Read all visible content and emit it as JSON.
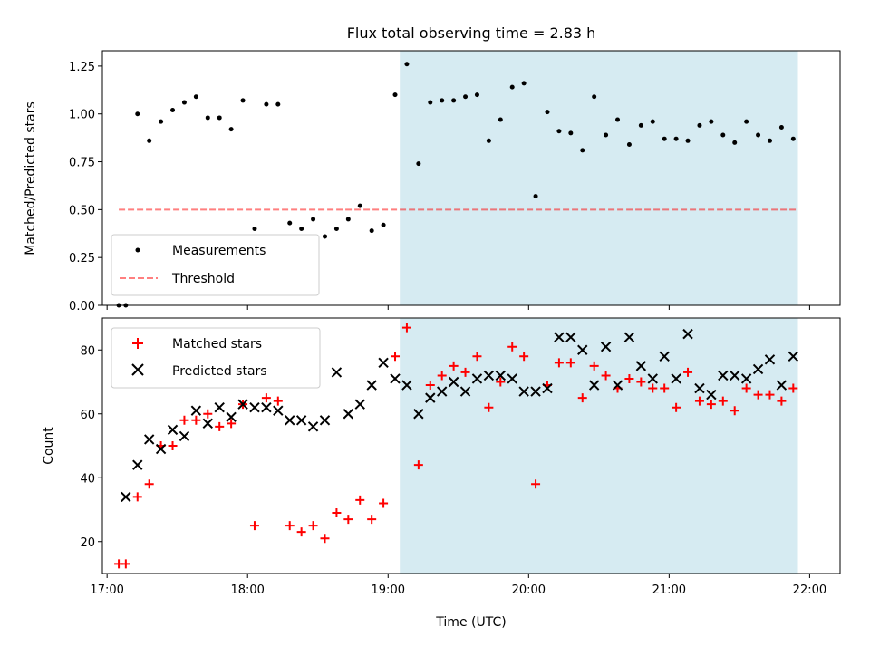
{
  "chart_data": {
    "type": "scatter",
    "title": "Flux total observing time = 2.83 h",
    "xlabel": "Time (UTC)",
    "x_ticks": [
      "17:00",
      "18:00",
      "19:00",
      "20:00",
      "21:00",
      "22:00"
    ],
    "x_range": [
      "16:58",
      "22:13"
    ],
    "shaded_interval": [
      "19:05",
      "21:55"
    ],
    "colors": {
      "shade": "#add8e6",
      "measurements": "#000000",
      "threshold": "#ff0000",
      "matched": "#ff0000",
      "predicted": "#000000"
    },
    "panels": [
      {
        "ylabel": "Matched/Predicted stars",
        "ylim": [
          0,
          1.33
        ],
        "y_ticks": [
          "0.00",
          "0.25",
          "0.50",
          "0.75",
          "1.00",
          "1.25"
        ],
        "legend_position": "lower-left",
        "threshold": {
          "name": "Threshold",
          "value": 0.5,
          "x_range": [
            "17:05",
            "21:55"
          ],
          "style": "dashed"
        },
        "series": [
          {
            "name": "Measurements",
            "marker": "dot",
            "x": [
              "17:05",
              "17:08",
              "17:13",
              "17:18",
              "17:23",
              "17:28",
              "17:33",
              "17:38",
              "17:43",
              "17:48",
              "17:53",
              "17:58",
              "18:03",
              "18:08",
              "18:13",
              "18:18",
              "18:23",
              "18:28",
              "18:33",
              "18:38",
              "18:43",
              "18:48",
              "18:53",
              "18:58",
              "19:03",
              "19:08",
              "19:13",
              "19:18",
              "19:23",
              "19:28",
              "19:33",
              "19:38",
              "19:43",
              "19:48",
              "19:53",
              "19:58",
              "20:03",
              "20:08",
              "20:13",
              "20:18",
              "20:23",
              "20:28",
              "20:33",
              "20:38",
              "20:43",
              "20:48",
              "20:53",
              "20:58",
              "21:03",
              "21:08",
              "21:13",
              "21:18",
              "21:23",
              "21:28",
              "21:33",
              "21:38",
              "21:43",
              "21:48",
              "21:53"
            ],
            "y": [
              0.0,
              0.0,
              1.0,
              0.86,
              0.96,
              1.02,
              1.06,
              1.09,
              0.98,
              0.98,
              0.92,
              1.07,
              0.4,
              1.05,
              1.05,
              0.43,
              0.4,
              0.45,
              0.36,
              0.4,
              0.45,
              0.52,
              0.39,
              0.42,
              1.1,
              1.26,
              0.74,
              1.06,
              1.07,
              1.07,
              1.09,
              1.1,
              0.86,
              0.97,
              1.14,
              1.16,
              0.57,
              1.01,
              0.91,
              0.9,
              0.81,
              1.09,
              0.89,
              0.97,
              0.84,
              0.94,
              0.96,
              0.87,
              0.87,
              0.86,
              0.94,
              0.96,
              0.89,
              0.85,
              0.96,
              0.89,
              0.86,
              0.93,
              0.87
            ]
          }
        ]
      },
      {
        "ylabel": "Count",
        "ylim": [
          10,
          90
        ],
        "y_ticks": [
          "20",
          "40",
          "60",
          "80"
        ],
        "legend_position": "upper-left",
        "series": [
          {
            "name": "Matched stars",
            "marker": "plus",
            "x": [
              "17:05",
              "17:08",
              "17:13",
              "17:18",
              "17:23",
              "17:28",
              "17:33",
              "17:38",
              "17:43",
              "17:48",
              "17:53",
              "17:58",
              "18:03",
              "18:08",
              "18:13",
              "18:18",
              "18:23",
              "18:28",
              "18:33",
              "18:38",
              "18:43",
              "18:48",
              "18:53",
              "18:58",
              "19:03",
              "19:08",
              "19:13",
              "19:18",
              "19:23",
              "19:28",
              "19:33",
              "19:38",
              "19:43",
              "19:48",
              "19:53",
              "19:58",
              "20:03",
              "20:08",
              "20:13",
              "20:18",
              "20:23",
              "20:28",
              "20:33",
              "20:38",
              "20:43",
              "20:48",
              "20:53",
              "20:58",
              "21:03",
              "21:08",
              "21:13",
              "21:18",
              "21:23",
              "21:28",
              "21:33",
              "21:38",
              "21:43",
              "21:48",
              "21:53"
            ],
            "y": [
              13,
              13,
              34,
              38,
              50,
              50,
              58,
              58,
              60,
              56,
              57,
              63,
              25,
              65,
              64,
              25,
              23,
              25,
              21,
              29,
              27,
              33,
              27,
              32,
              78,
              87,
              44,
              69,
              72,
              75,
              73,
              78,
              62,
              70,
              81,
              78,
              38,
              69,
              76,
              76,
              65,
              75,
              72,
              68,
              71,
              70,
              68,
              68,
              62,
              73,
              64,
              63,
              64,
              61,
              68,
              66,
              66,
              64,
              68
            ]
          },
          {
            "name": "Predicted stars",
            "marker": "x",
            "x": [
              "17:08",
              "17:13",
              "17:18",
              "17:23",
              "17:28",
              "17:33",
              "17:38",
              "17:43",
              "17:48",
              "17:53",
              "17:58",
              "18:03",
              "18:08",
              "18:13",
              "18:18",
              "18:23",
              "18:28",
              "18:33",
              "18:38",
              "18:43",
              "18:48",
              "18:53",
              "18:58",
              "19:03",
              "19:08",
              "19:13",
              "19:18",
              "19:23",
              "19:28",
              "19:33",
              "19:38",
              "19:43",
              "19:48",
              "19:53",
              "19:58",
              "20:03",
              "20:08",
              "20:13",
              "20:18",
              "20:23",
              "20:28",
              "20:33",
              "20:38",
              "20:43",
              "20:48",
              "20:53",
              "20:58",
              "21:03",
              "21:08",
              "21:13",
              "21:18",
              "21:23",
              "21:28",
              "21:33",
              "21:38",
              "21:43",
              "21:48",
              "21:53"
            ],
            "y": [
              34,
              44,
              52,
              49,
              55,
              53,
              61,
              57,
              62,
              59,
              63,
              62,
              62,
              61,
              58,
              58,
              56,
              58,
              73,
              60,
              63,
              69,
              76,
              71,
              69,
              60,
              65,
              67,
              70,
              67,
              71,
              72,
              72,
              71,
              67,
              67,
              68,
              84,
              84,
              80,
              69,
              81,
              69,
              84,
              75,
              71,
              78,
              71,
              85,
              68,
              66,
              72,
              72,
              71,
              74,
              77,
              69,
              78
            ]
          }
        ]
      }
    ]
  }
}
